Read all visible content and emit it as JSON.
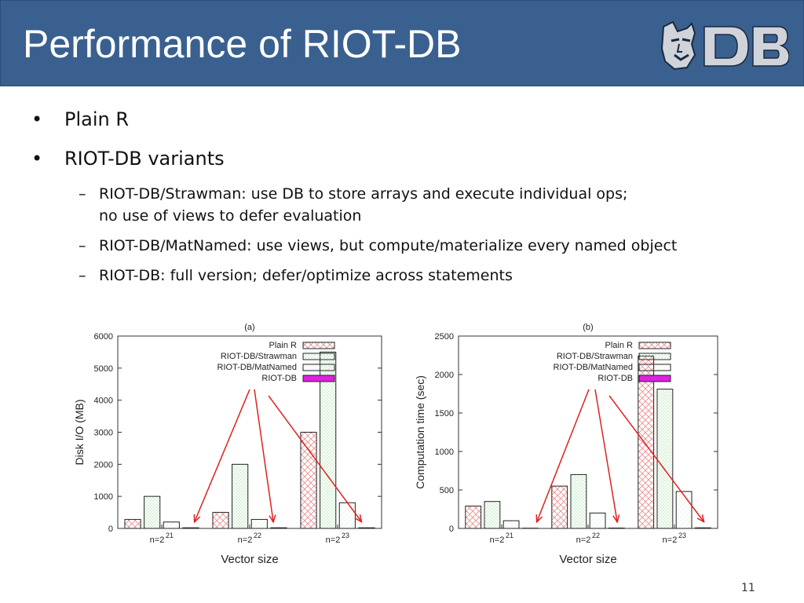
{
  "slide": {
    "title": "Performance of RIOT-DB",
    "page_number": "11"
  },
  "bullets": [
    {
      "text": "Plain R"
    },
    {
      "text": "RIOT-DB variants",
      "sub": [
        {
          "text": "RIOT-DB/Strawman: use DB to store arrays and execute individual ops;",
          "cont": "no use of views to defer evaluation"
        },
        {
          "text": "RIOT-DB/MatNamed: use views, but compute/materialize every named object"
        },
        {
          "text": "RIOT-DB: full version; defer/optimize across statements"
        }
      ]
    }
  ],
  "colors": {
    "header": "#3a6090",
    "arrow": "#e02020",
    "riotdb_fill": "#e020e0",
    "plainr_hatch": "#e88a8a",
    "strawman_hatch": "#7fcf7f"
  },
  "chart_data": [
    {
      "type": "bar",
      "title": "(a)",
      "xlabel": "Vector size",
      "ylabel": "Disk I/O (MB)",
      "categories": [
        "n=2",
        "n=2",
        "n=2"
      ],
      "category_exponents": [
        "21",
        "22",
        "23"
      ],
      "ylim": [
        0,
        6000
      ],
      "yticks": [
        0,
        1000,
        2000,
        3000,
        4000,
        5000,
        6000
      ],
      "legend_position": "top-right",
      "series": [
        {
          "name": "Plain R",
          "values": [
            280,
            500,
            3000
          ]
        },
        {
          "name": "RIOT-DB/Strawman",
          "values": [
            1000,
            2000,
            5500
          ]
        },
        {
          "name": "RIOT-DB/MatNamed",
          "values": [
            200,
            280,
            800
          ]
        },
        {
          "name": "RIOT-DB",
          "values": [
            20,
            20,
            20
          ]
        }
      ]
    },
    {
      "type": "bar",
      "title": "(b)",
      "xlabel": "Vector size",
      "ylabel": "Computation time (sec)",
      "categories": [
        "n=2",
        "n=2",
        "n=2"
      ],
      "category_exponents": [
        "21",
        "22",
        "23"
      ],
      "ylim": [
        0,
        2500
      ],
      "yticks": [
        0,
        500,
        1000,
        1500,
        2000,
        2500
      ],
      "legend_position": "top-right",
      "series": [
        {
          "name": "Plain R",
          "values": [
            290,
            550,
            2240
          ]
        },
        {
          "name": "RIOT-DB/Strawman",
          "values": [
            350,
            700,
            1810
          ]
        },
        {
          "name": "RIOT-DB/MatNamed",
          "values": [
            100,
            200,
            480
          ]
        },
        {
          "name": "RIOT-DB",
          "values": [
            3,
            5,
            8
          ]
        }
      ]
    }
  ]
}
